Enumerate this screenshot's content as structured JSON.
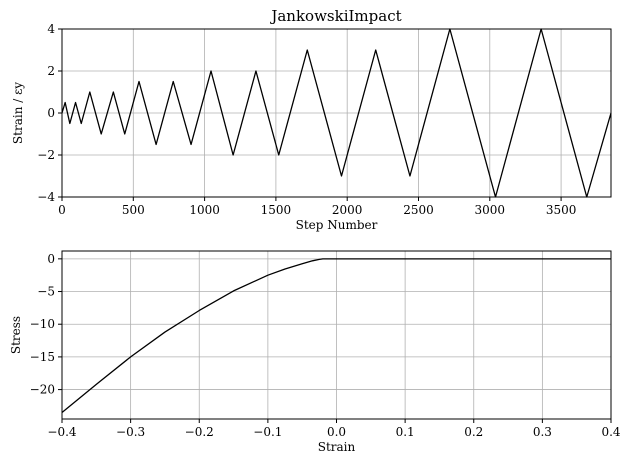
{
  "chart_data": [
    {
      "type": "line",
      "title": "JankowskiImpact",
      "xlabel": "Step Number",
      "ylabel": "Strain / εy",
      "xlim": [
        0,
        3850
      ],
      "ylim": [
        -4,
        4
      ],
      "xticks": [
        0,
        500,
        1000,
        1500,
        2000,
        2500,
        3000,
        3500
      ],
      "yticks": [
        -4,
        -2,
        0,
        2,
        4
      ],
      "grid": true,
      "series": [
        {
          "x": [
            0,
            22,
            55,
            95,
            135,
            195,
            275,
            360,
            440,
            540,
            660,
            780,
            905,
            1045,
            1200,
            1360,
            1520,
            1720,
            1960,
            2200,
            2440,
            2720,
            3040,
            3360,
            3680,
            3850
          ],
          "y": [
            0,
            0.5,
            -0.5,
            0.5,
            -0.5,
            1,
            -1,
            1,
            -1,
            1.5,
            -1.5,
            1.5,
            -1.5,
            2,
            -2,
            2,
            -2,
            3,
            -3,
            3,
            -3,
            4,
            -4,
            4,
            -4,
            0
          ]
        }
      ]
    },
    {
      "type": "line",
      "title": "",
      "xlabel": "Strain",
      "ylabel": "Stress",
      "xlim": [
        -0.4,
        0.4
      ],
      "ylim": [
        -24.5,
        1.2
      ],
      "xticks": [
        -0.4,
        -0.3,
        -0.2,
        -0.1,
        0.0,
        0.1,
        0.2,
        0.3,
        0.4
      ],
      "yticks": [
        -20,
        -15,
        -10,
        -5,
        0
      ],
      "grid": true,
      "series": [
        {
          "x": [
            -0.4,
            -0.35,
            -0.3,
            -0.25,
            -0.2,
            -0.15,
            -0.1,
            -0.075,
            -0.05,
            -0.035,
            -0.025,
            -0.02,
            0.0,
            0.1,
            0.2,
            0.3,
            0.4
          ],
          "y": [
            -23.5,
            -19.2,
            -15.0,
            -11.2,
            -7.9,
            -4.9,
            -2.5,
            -1.55,
            -0.75,
            -0.3,
            -0.08,
            0.0,
            0.0,
            0.0,
            0.0,
            0.0,
            0.0
          ]
        }
      ]
    }
  ]
}
